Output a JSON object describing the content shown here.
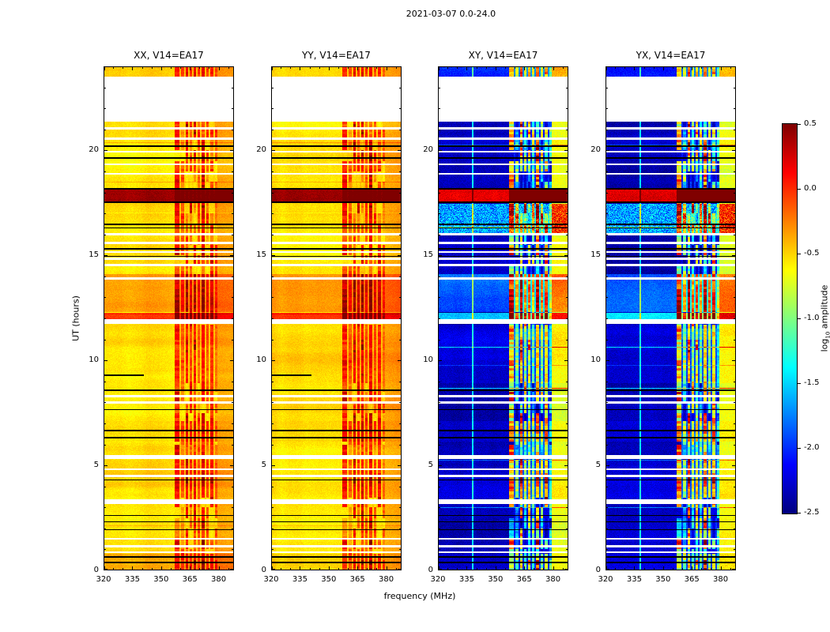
{
  "title": "2021-03-07 0.0-24.0",
  "xlabel": "frequency (MHz)",
  "ylabel": "UT (hours)",
  "axes": {
    "x_tick_labels": [
      "320",
      "335",
      "350",
      "365",
      "380"
    ],
    "y_tick_labels": [
      "0",
      "5",
      "10",
      "15",
      "20"
    ]
  },
  "colorbar": {
    "label_pre": "log",
    "label_sub": "10",
    "label_post": " amplitude",
    "tick_labels": [
      "0.5",
      "0.0",
      "-0.5",
      "-1.0",
      "-1.5",
      "-2.0",
      "-2.5"
    ]
  },
  "chart_data": {
    "type": "heatmap",
    "title": "2021-03-07 0.0-24.0",
    "panels": [
      {
        "title": "XX, V14=EA17",
        "kind": "auto",
        "baseline_log10_amp": -0.55
      },
      {
        "title": "YY, V14=EA17",
        "kind": "auto",
        "baseline_log10_amp": -0.55
      },
      {
        "title": "XY, V14=EA17",
        "kind": "cross",
        "baseline_log10_amp": -2.35
      },
      {
        "title": "YX, V14=EA17",
        "kind": "cross",
        "baseline_log10_amp": -2.35
      }
    ],
    "x_axis": {
      "label": "frequency (MHz)",
      "range_mhz": [
        320,
        388
      ],
      "ticks": [
        320,
        335,
        350,
        365,
        380
      ]
    },
    "y_axis": {
      "label": "UT (hours)",
      "range_hours": [
        0,
        24
      ],
      "ticks": [
        0,
        5,
        10,
        15,
        20
      ]
    },
    "color_scale": {
      "colormap": "jet",
      "label": "log10 amplitude",
      "range": [
        -2.5,
        0.5
      ],
      "ticks": [
        0.5,
        0.0,
        -0.5,
        -1.0,
        -1.5,
        -2.0,
        -2.5
      ]
    },
    "rfi_stripes_mhz": [
      {
        "f": [
          357.0,
          359.5
        ],
        "strength": 0.75
      },
      {
        "f": [
          360.5,
          362.0
        ],
        "strength": 0.55
      },
      {
        "f": [
          362.8,
          364.2
        ],
        "strength": 0.9
      },
      {
        "f": [
          364.8,
          366.2
        ],
        "strength": 0.7
      },
      {
        "f": [
          367.0,
          368.3
        ],
        "strength": 0.85
      },
      {
        "f": [
          369.0,
          370.2
        ],
        "strength": 0.6
      },
      {
        "f": [
          371.0,
          372.8
        ],
        "strength": 0.9
      },
      {
        "f": [
          373.5,
          374.8
        ],
        "strength": 0.65
      },
      {
        "f": [
          375.5,
          377.2
        ],
        "strength": 0.8
      },
      {
        "f": [
          378.0,
          379.2
        ],
        "strength": 0.5
      }
    ],
    "rfi_zone_mhz": [
      357,
      379.5
    ],
    "band_edge_mhz": [
      379.5,
      388
    ],
    "time_events": [
      {
        "t": [
          23.5,
          24.0
        ],
        "auto": 0.05,
        "cross": 0.25,
        "rfi_min": 0.7
      },
      {
        "t": [
          17.55,
          18.15
        ],
        "auto": 0.95,
        "cross": 2.55,
        "rfi_min": 0.9
      },
      {
        "t": [
          16.08,
          17.45
        ],
        "auto": 0.0,
        "cross": 0.75,
        "streak": 0.25
      },
      {
        "t": [
          12.3,
          14.1
        ],
        "auto": 0.22,
        "cross": 0.5,
        "rfi_min": 0.8
      },
      {
        "t": [
          11.95,
          12.28
        ],
        "auto": 0.52,
        "cross": 0.9,
        "rfi_min": 0.9
      },
      {
        "t": [
          8.9,
          11.7
        ],
        "auto": 0.02,
        "cross": 0.12,
        "rfi_min": 0.65
      },
      {
        "t": [
          6.15,
          7.1
        ],
        "auto": 0.03,
        "cross": 0.1,
        "rfi_min": 0.8
      },
      {
        "t": [
          3.45,
          5.25
        ],
        "auto": 0.03,
        "cross": 0.08,
        "rfi_min": 0.75
      },
      {
        "t": [
          0.0,
          0.8
        ],
        "auto": 0.1,
        "cross": 0.1,
        "rfi_min": 0.6
      }
    ],
    "flagged_time_ranges": [
      [
        21.35,
        23.5
      ],
      [
        21.0,
        21.1
      ],
      [
        20.5,
        20.6
      ],
      [
        19.9,
        19.98
      ],
      [
        19.28,
        19.36
      ],
      [
        18.85,
        18.93
      ],
      [
        15.95,
        16.08
      ],
      [
        15.55,
        15.65
      ],
      [
        15.12,
        15.2
      ],
      [
        14.78,
        14.88
      ],
      [
        14.5,
        14.58
      ],
      [
        13.85,
        13.95
      ],
      [
        11.72,
        11.95
      ],
      [
        8.25,
        8.34
      ],
      [
        7.95,
        8.04
      ],
      [
        5.3,
        5.5
      ],
      [
        4.78,
        4.87
      ],
      [
        4.45,
        4.54
      ],
      [
        3.15,
        3.4
      ],
      [
        1.45,
        1.54
      ],
      [
        1.1,
        1.19
      ],
      [
        0.82,
        0.9
      ]
    ],
    "dark_time_ranges": [
      [
        20.18,
        20.24
      ],
      [
        19.6,
        19.66
      ],
      [
        18.14,
        18.2
      ],
      [
        17.5,
        17.56
      ],
      [
        16.44,
        16.5
      ],
      [
        16.28,
        16.34
      ],
      [
        15.28,
        15.34
      ],
      [
        14.93,
        14.99
      ],
      [
        8.55,
        8.61
      ],
      [
        7.62,
        7.68
      ],
      [
        6.62,
        6.68
      ],
      [
        6.3,
        6.36
      ],
      [
        4.28,
        4.34
      ],
      [
        2.58,
        2.64
      ],
      [
        2.28,
        2.34
      ],
      [
        1.9,
        1.96
      ],
      [
        0.6,
        0.66
      ],
      [
        0.34,
        0.4
      ]
    ],
    "partial_dark": [
      {
        "t": [
          9.26,
          9.34
        ],
        "f": [
          320,
          341
        ],
        "panels": [
          0,
          1
        ]
      }
    ],
    "light_columns_cross": [
      {
        "f": [
          337.6,
          338.4
        ],
        "boost": 0.9
      }
    ]
  }
}
